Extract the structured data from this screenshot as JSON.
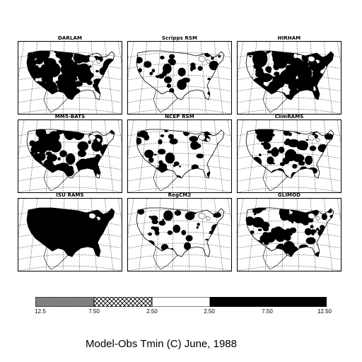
{
  "figure": {
    "title": "Model-Obs Tmin (C) June, 1988"
  },
  "panels": [
    {
      "name": "DARLAM",
      "fill": "heavy"
    },
    {
      "name": "Scripps RSM",
      "fill": "light"
    },
    {
      "name": "HIRHAM",
      "fill": "heavy"
    },
    {
      "name": "MM5-BATS",
      "fill": "medium"
    },
    {
      "name": "NCEP RSM",
      "fill": "light"
    },
    {
      "name": "ClimRAMS",
      "fill": "medium"
    },
    {
      "name": "ISU RAMS",
      "fill": "full"
    },
    {
      "name": "RegCM2",
      "fill": "light"
    },
    {
      "name": "GLIMOD",
      "fill": "medium"
    }
  ],
  "legend": {
    "tick_labels": [
      "12.5",
      "7.50",
      "2.50",
      "2.50",
      "7.50",
      "12.50"
    ],
    "bins": [
      {
        "range": "-12.5 to -7.50",
        "pattern": "dense-dots"
      },
      {
        "range": "-7.50 to -2.50",
        "pattern": "crosshatch"
      },
      {
        "range": "-2.50 to 2.50",
        "pattern": "blank"
      },
      {
        "range": "2.50 to 7.50",
        "pattern": "solid-black"
      },
      {
        "range": "7.50 to 12.50",
        "pattern": "solid-black"
      }
    ]
  },
  "colors": {
    "ink": "#000000",
    "paper": "#ffffff"
  }
}
